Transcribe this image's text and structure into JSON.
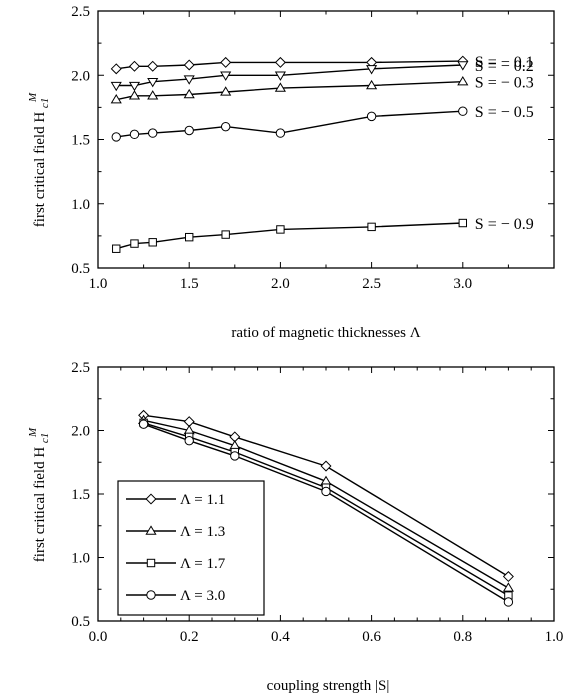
{
  "chart_data": [
    {
      "type": "line",
      "xlabel": "ratio of magnetic thicknesses Λ",
      "ylabel": "first critical field H",
      "ylabel_sub": "c1",
      "ylabel_sup": "M",
      "xlim": [
        1.0,
        3.5
      ],
      "ylim": [
        0.5,
        2.5
      ],
      "xticks": [
        "1.0",
        "1.5",
        "2.0",
        "2.5",
        "3.0"
      ],
      "yticks": [
        "0.5",
        "1.0",
        "1.5",
        "2.0",
        "2.5"
      ],
      "series": [
        {
          "name": "S = − 0.1",
          "marker": "diamond",
          "x": [
            1.1,
            1.2,
            1.3,
            1.5,
            1.7,
            2.0,
            2.5,
            3.0
          ],
          "y": [
            2.05,
            2.07,
            2.07,
            2.08,
            2.1,
            2.1,
            2.1,
            2.11
          ]
        },
        {
          "name": "S = − 0.2",
          "marker": "triangle-down",
          "x": [
            1.1,
            1.2,
            1.3,
            1.5,
            1.7,
            2.0,
            2.5,
            3.0
          ],
          "y": [
            1.92,
            1.92,
            1.95,
            1.97,
            2.0,
            2.0,
            2.05,
            2.08
          ]
        },
        {
          "name": "S = − 0.3",
          "marker": "triangle-up",
          "x": [
            1.1,
            1.2,
            1.3,
            1.5,
            1.7,
            2.0,
            2.5,
            3.0
          ],
          "y": [
            1.81,
            1.84,
            1.84,
            1.85,
            1.87,
            1.9,
            1.92,
            1.95
          ]
        },
        {
          "name": "S = − 0.5",
          "marker": "circle",
          "x": [
            1.1,
            1.2,
            1.3,
            1.5,
            1.7,
            2.0,
            2.5,
            3.0
          ],
          "y": [
            1.52,
            1.54,
            1.55,
            1.57,
            1.6,
            1.55,
            1.68,
            1.72
          ]
        },
        {
          "name": "S = − 0.9",
          "marker": "square",
          "x": [
            1.1,
            1.2,
            1.3,
            1.5,
            1.7,
            2.0,
            2.5,
            3.0
          ],
          "y": [
            0.65,
            0.69,
            0.7,
            0.74,
            0.76,
            0.8,
            0.82,
            0.85
          ]
        }
      ]
    },
    {
      "type": "line",
      "xlabel": "coupling strength |S|",
      "ylabel": "first critical field H",
      "ylabel_sub": "c1",
      "ylabel_sup": "M",
      "xlim": [
        0.0,
        1.0
      ],
      "ylim": [
        0.5,
        2.5
      ],
      "xticks": [
        "0.0",
        "0.2",
        "0.4",
        "0.6",
        "0.8",
        "1.0"
      ],
      "yticks": [
        "0.5",
        "1.0",
        "1.5",
        "2.0",
        "2.5"
      ],
      "legend_position": "bottom-left",
      "series": [
        {
          "name": "Λ = 1.1",
          "marker": "diamond",
          "x": [
            0.1,
            0.2,
            0.3,
            0.5,
            0.9
          ],
          "y": [
            2.12,
            2.07,
            1.95,
            1.72,
            0.85
          ]
        },
        {
          "name": "Λ = 1.3",
          "marker": "triangle-up",
          "x": [
            0.1,
            0.2,
            0.3,
            0.5,
            0.9
          ],
          "y": [
            2.08,
            2.0,
            1.88,
            1.6,
            0.76
          ]
        },
        {
          "name": "Λ = 1.7",
          "marker": "square",
          "x": [
            0.1,
            0.2,
            0.3,
            0.5,
            0.9
          ],
          "y": [
            2.06,
            1.95,
            1.83,
            1.55,
            0.7
          ]
        },
        {
          "name": "Λ = 3.0",
          "marker": "circle",
          "x": [
            0.1,
            0.2,
            0.3,
            0.5,
            0.9
          ],
          "y": [
            2.05,
            1.92,
            1.8,
            1.52,
            0.65
          ]
        }
      ]
    }
  ]
}
